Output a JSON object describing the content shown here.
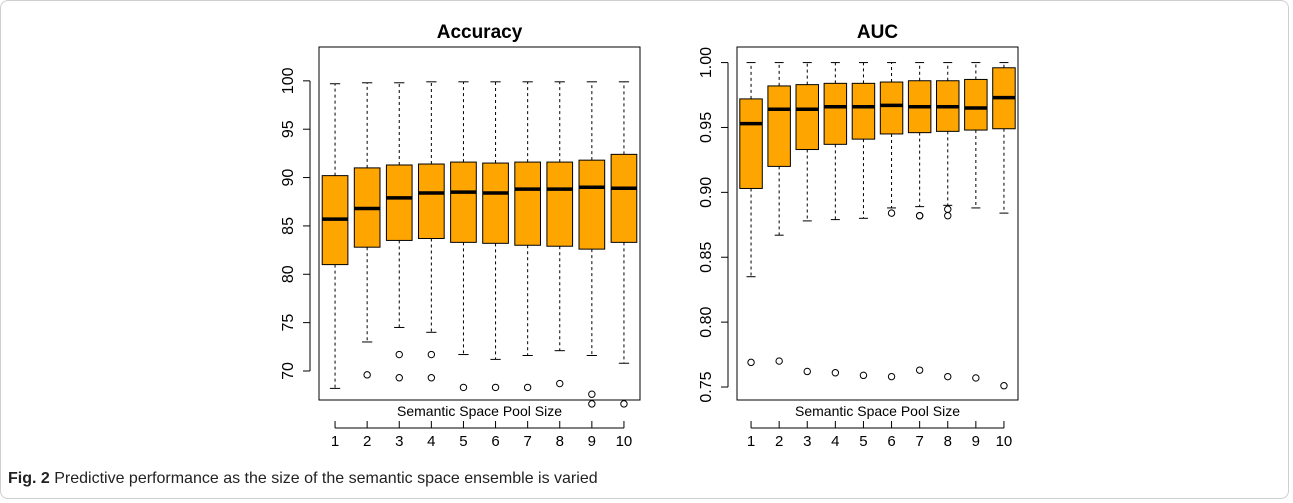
{
  "caption": {
    "label": "Fig. 2",
    "text": "Predictive performance as the size of the semantic space ensemble is varied"
  },
  "colors": {
    "box_fill": "#FFA500",
    "median": "#000000",
    "axis": "#000000"
  },
  "chart_data": [
    {
      "type": "boxplot",
      "title": "Accuracy",
      "xlabel": "Semantic Space Pool Size",
      "ylabel": "",
      "ylim": [
        67,
        103.5
      ],
      "yticks": [
        70,
        75,
        80,
        85,
        90,
        95,
        100
      ],
      "ytick_labels": [
        "70",
        "75",
        "80",
        "85",
        "90",
        "95",
        "100"
      ],
      "categories": [
        "1",
        "2",
        "3",
        "4",
        "5",
        "6",
        "7",
        "8",
        "9",
        "10"
      ],
      "boxes": [
        {
          "whisker_low": 68.2,
          "q1": 81.0,
          "median": 85.7,
          "q3": 90.2,
          "whisker_high": 99.7,
          "outliers": []
        },
        {
          "whisker_low": 73.0,
          "q1": 82.8,
          "median": 86.8,
          "q3": 91.0,
          "whisker_high": 99.8,
          "outliers": [
            69.6
          ]
        },
        {
          "whisker_low": 74.5,
          "q1": 83.5,
          "median": 87.9,
          "q3": 91.3,
          "whisker_high": 99.8,
          "outliers": [
            71.7,
            69.3
          ]
        },
        {
          "whisker_low": 74.0,
          "q1": 83.7,
          "median": 88.4,
          "q3": 91.4,
          "whisker_high": 99.9,
          "outliers": [
            71.7,
            69.3
          ]
        },
        {
          "whisker_low": 71.7,
          "q1": 83.3,
          "median": 88.5,
          "q3": 91.6,
          "whisker_high": 99.9,
          "outliers": [
            68.3
          ]
        },
        {
          "whisker_low": 71.2,
          "q1": 83.2,
          "median": 88.4,
          "q3": 91.5,
          "whisker_high": 99.9,
          "outliers": [
            68.3
          ]
        },
        {
          "whisker_low": 71.6,
          "q1": 83.0,
          "median": 88.8,
          "q3": 91.6,
          "whisker_high": 99.9,
          "outliers": [
            68.3
          ]
        },
        {
          "whisker_low": 72.1,
          "q1": 82.9,
          "median": 88.8,
          "q3": 91.6,
          "whisker_high": 99.9,
          "outliers": [
            68.7
          ]
        },
        {
          "whisker_low": 71.6,
          "q1": 82.6,
          "median": 89.0,
          "q3": 91.8,
          "whisker_high": 99.9,
          "outliers": [
            67.6,
            66.6
          ]
        },
        {
          "whisker_low": 70.8,
          "q1": 83.3,
          "median": 88.9,
          "q3": 92.4,
          "whisker_high": 99.9,
          "outliers": [
            66.6
          ]
        }
      ]
    },
    {
      "type": "boxplot",
      "title": "AUC",
      "xlabel": "Semantic Space Pool Size",
      "ylabel": "",
      "ylim": [
        0.74,
        1.012
      ],
      "yticks": [
        0.75,
        0.8,
        0.85,
        0.9,
        0.95,
        1.0
      ],
      "ytick_labels": [
        "0.75",
        "0.80",
        "0.85",
        "0.90",
        "0.95",
        "1.00"
      ],
      "categories": [
        "1",
        "2",
        "3",
        "4",
        "5",
        "6",
        "7",
        "8",
        "9",
        "10"
      ],
      "boxes": [
        {
          "whisker_low": 0.835,
          "q1": 0.903,
          "median": 0.953,
          "q3": 0.972,
          "whisker_high": 1.0,
          "outliers": [
            0.769
          ]
        },
        {
          "whisker_low": 0.867,
          "q1": 0.92,
          "median": 0.964,
          "q3": 0.982,
          "whisker_high": 1.0,
          "outliers": [
            0.77
          ]
        },
        {
          "whisker_low": 0.878,
          "q1": 0.933,
          "median": 0.964,
          "q3": 0.983,
          "whisker_high": 1.0,
          "outliers": [
            0.762
          ]
        },
        {
          "whisker_low": 0.879,
          "q1": 0.937,
          "median": 0.966,
          "q3": 0.984,
          "whisker_high": 1.0,
          "outliers": [
            0.761
          ]
        },
        {
          "whisker_low": 0.88,
          "q1": 0.941,
          "median": 0.966,
          "q3": 0.984,
          "whisker_high": 1.0,
          "outliers": [
            0.759
          ]
        },
        {
          "whisker_low": 0.888,
          "q1": 0.945,
          "median": 0.967,
          "q3": 0.985,
          "whisker_high": 1.0,
          "outliers": [
            0.884,
            0.758
          ]
        },
        {
          "whisker_low": 0.889,
          "q1": 0.946,
          "median": 0.966,
          "q3": 0.986,
          "whisker_high": 1.0,
          "outliers": [
            0.882,
            0.882,
            0.763
          ]
        },
        {
          "whisker_low": 0.89,
          "q1": 0.947,
          "median": 0.966,
          "q3": 0.986,
          "whisker_high": 1.0,
          "outliers": [
            0.887,
            0.882,
            0.758
          ]
        },
        {
          "whisker_low": 0.888,
          "q1": 0.948,
          "median": 0.965,
          "q3": 0.987,
          "whisker_high": 1.0,
          "outliers": [
            0.757
          ]
        },
        {
          "whisker_low": 0.884,
          "q1": 0.949,
          "median": 0.973,
          "q3": 0.996,
          "whisker_high": 1.0,
          "outliers": [
            0.751
          ]
        }
      ]
    }
  ]
}
